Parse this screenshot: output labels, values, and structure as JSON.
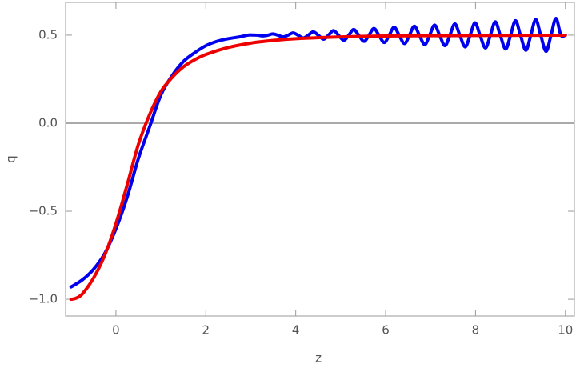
{
  "chart_data": {
    "type": "line",
    "xlabel": "z",
    "ylabel": "q",
    "xlim": [
      -1.12,
      10.2
    ],
    "ylim": [
      -1.095,
      0.686
    ],
    "xticks": [
      0,
      2,
      4,
      6,
      8,
      10
    ],
    "yticks": [
      {
        "value": -1.0,
        "label": "−1.0"
      },
      {
        "value": -0.5,
        "label": "−0.5"
      },
      {
        "value": 0.0,
        "label": "0.0"
      },
      {
        "value": 0.5,
        "label": "0.5"
      }
    ],
    "series": [
      {
        "color": "#0000ee",
        "x": [
          -1,
          -0.75,
          -0.5,
          -0.25,
          0,
          0.25,
          0.5,
          0.75,
          1,
          1.25,
          1.5,
          1.75,
          2,
          2.25,
          2.5,
          2.75,
          2.93,
          3.04,
          3.15,
          3.27,
          3.38,
          3.49,
          3.6,
          3.72,
          3.83,
          3.94,
          4.05,
          4.17,
          4.28,
          4.39,
          4.5,
          4.62,
          4.73,
          4.84,
          4.95,
          5.07,
          5.18,
          5.29,
          5.4,
          5.52,
          5.63,
          5.74,
          5.85,
          5.97,
          6.08,
          6.19,
          6.3,
          6.42,
          6.53,
          6.64,
          6.75,
          6.87,
          6.98,
          7.09,
          7.2,
          7.32,
          7.43,
          7.54,
          7.65,
          7.77,
          7.88,
          7.99,
          8.1,
          8.22,
          8.33,
          8.44,
          8.55,
          8.67,
          8.78,
          8.89,
          9.0,
          9.12,
          9.23,
          9.34,
          9.45,
          9.57,
          9.68,
          9.79,
          9.9,
          10.0
        ],
        "values": [
          -0.93,
          -0.89,
          -0.83,
          -0.74,
          -0.6,
          -0.42,
          -0.2,
          -0.02,
          0.16,
          0.27,
          0.35,
          0.4,
          0.44,
          0.465,
          0.48,
          0.49,
          0.5,
          0.501,
          0.5,
          0.496,
          0.5,
          0.507,
          0.5,
          0.49,
          0.5,
          0.513,
          0.5,
          0.484,
          0.5,
          0.519,
          0.5,
          0.477,
          0.5,
          0.526,
          0.5,
          0.471,
          0.5,
          0.532,
          0.5,
          0.465,
          0.5,
          0.538,
          0.5,
          0.458,
          0.5,
          0.545,
          0.5,
          0.452,
          0.5,
          0.551,
          0.5,
          0.446,
          0.5,
          0.557,
          0.5,
          0.44,
          0.5,
          0.564,
          0.5,
          0.433,
          0.5,
          0.57,
          0.5,
          0.427,
          0.5,
          0.576,
          0.5,
          0.421,
          0.5,
          0.582,
          0.5,
          0.414,
          0.5,
          0.589,
          0.5,
          0.408,
          0.5,
          0.595,
          0.5,
          0.5
        ]
      },
      {
        "color": "#ee0000",
        "x": [
          -1,
          -0.9,
          -0.75,
          -0.5,
          -0.25,
          0,
          0.25,
          0.5,
          0.75,
          1,
          1.25,
          1.5,
          1.75,
          2,
          2.5,
          3,
          3.5,
          4,
          5,
          6,
          7,
          8,
          9,
          10
        ],
        "values": [
          -1.0,
          -0.995,
          -0.97,
          -0.88,
          -0.75,
          -0.57,
          -0.35,
          -0.12,
          0.05,
          0.18,
          0.26,
          0.32,
          0.36,
          0.39,
          0.43,
          0.455,
          0.47,
          0.48,
          0.49,
          0.495,
          0.497,
          0.498,
          0.499,
          0.5
        ]
      }
    ]
  }
}
